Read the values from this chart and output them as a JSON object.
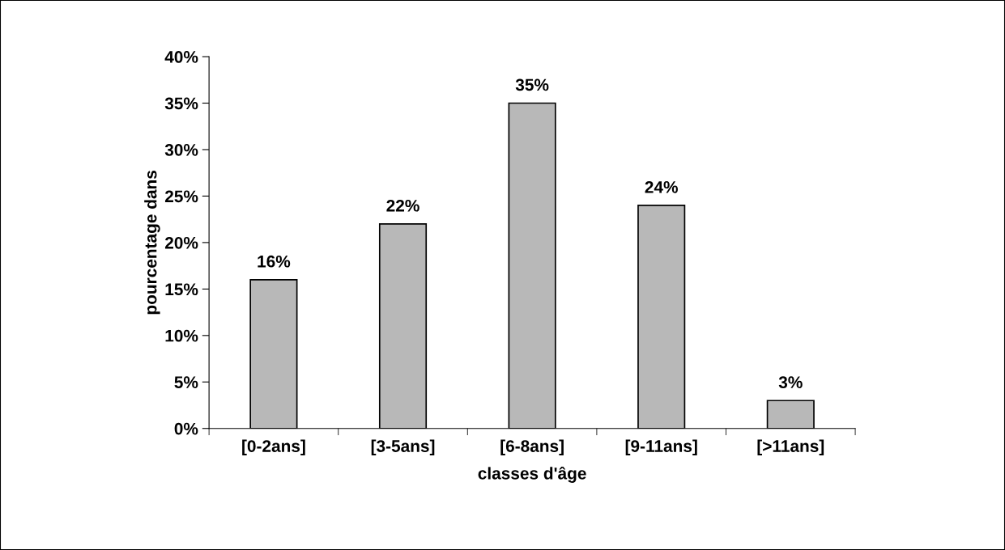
{
  "chart_data": {
    "type": "bar",
    "xlabel": "classes d'âge",
    "ylabel": "pourcentage dans",
    "categories": [
      "[0-2ans]",
      "[3-5ans]",
      "[6-8ans]",
      "[9-11ans]",
      "[>11ans]"
    ],
    "values": [
      16,
      22,
      35,
      24,
      3
    ],
    "value_labels": [
      "16%",
      "22%",
      "35%",
      "24%",
      "3%"
    ],
    "color": "#b8b8b8",
    "ylim": [
      0,
      40
    ],
    "yticks": [
      {
        "value": 0,
        "label": "0%"
      },
      {
        "value": 5,
        "label": "5%"
      },
      {
        "value": 10,
        "label": "10%"
      },
      {
        "value": 15,
        "label": "15%"
      },
      {
        "value": 20,
        "label": "20%"
      },
      {
        "value": 25,
        "label": "25%"
      },
      {
        "value": 30,
        "label": "30%"
      },
      {
        "value": 35,
        "label": "35%"
      },
      {
        "value": 40,
        "label": "40%"
      }
    ],
    "grid": false,
    "legend": false
  }
}
